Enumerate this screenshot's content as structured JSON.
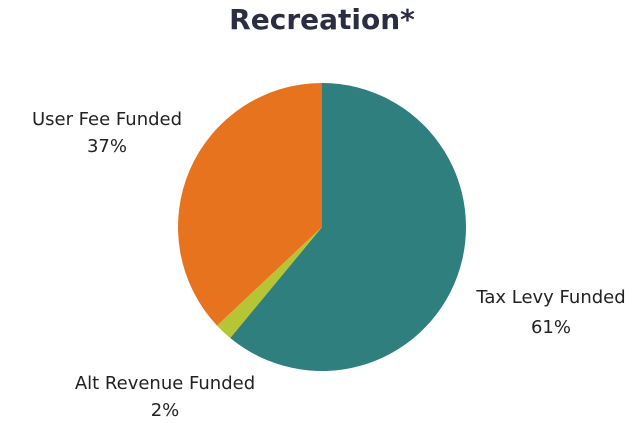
{
  "chart_data": {
    "type": "pie",
    "title": "Recreation*",
    "start": "12 o'clock",
    "direction": "clockwise",
    "slices": [
      {
        "label": "Tax Levy Funded",
        "value": 61,
        "value_label": "61%",
        "color": "#2f7f7f"
      },
      {
        "label": "Alt Revenue Funded",
        "value": 2,
        "value_label": "2%",
        "color": "#b5c534"
      },
      {
        "label": "User Fee Funded",
        "value": 37,
        "value_label": "37%",
        "color": "#e8731f"
      }
    ]
  }
}
